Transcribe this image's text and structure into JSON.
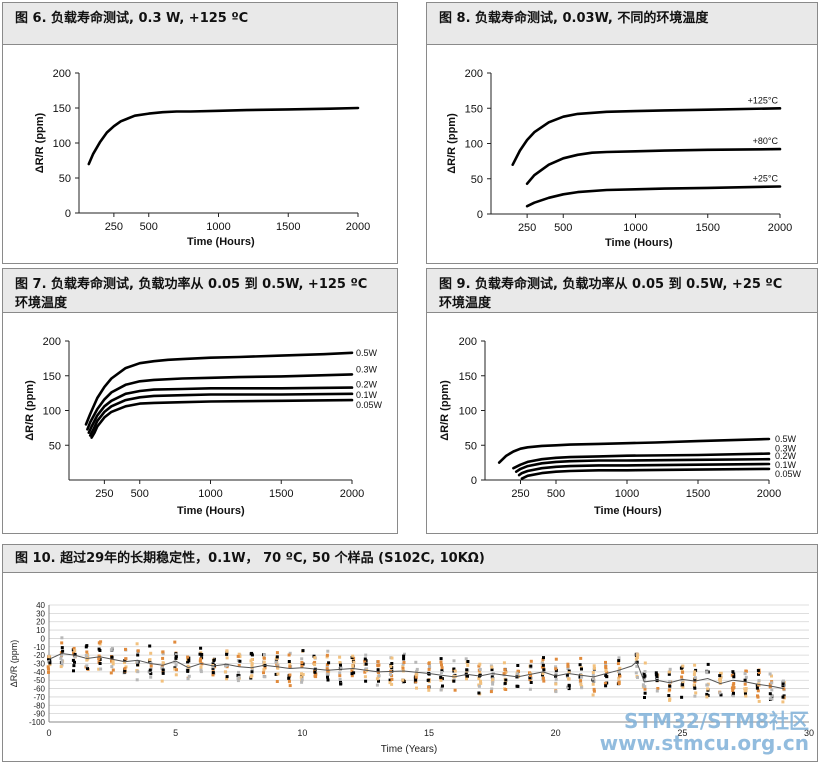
{
  "watermark": {
    "line1": "STM32/STM8社区",
    "line2": "www.stmcu.org.cn"
  },
  "chart_data": [
    {
      "id": "fig6",
      "type": "line",
      "title": "图 6. 负载寿命测试, 0.3 W, +125 ºC",
      "xlabel": "Time (Hours)",
      "ylabel": "ΔR/R (ppm)",
      "xlim": [
        0,
        2000
      ],
      "ylim": [
        0,
        200
      ],
      "xticks": [
        250,
        500,
        1000,
        1500,
        2000
      ],
      "yticks": [
        0,
        50,
        100,
        150,
        200
      ],
      "series": [
        {
          "name": "",
          "x": [
            70,
            100,
            150,
            200,
            250,
            300,
            400,
            500,
            600,
            700,
            800,
            1000,
            1200,
            1500,
            1800,
            2000
          ],
          "y": [
            70,
            84,
            101,
            115,
            124,
            131,
            139,
            142,
            144,
            145,
            145,
            146,
            147,
            148,
            149,
            150
          ]
        }
      ]
    },
    {
      "id": "fig8",
      "type": "line",
      "title": "图 8. 负载寿命测试, 0.03W, 不同的环境温度",
      "xlabel": "Time (Hours)",
      "ylabel": "ΔR/R (ppm)",
      "xlim": [
        0,
        2000
      ],
      "ylim": [
        0,
        200
      ],
      "xticks": [
        250,
        500,
        1000,
        1500,
        2000
      ],
      "yticks": [
        0,
        50,
        100,
        150,
        200
      ],
      "series": [
        {
          "name": "+125°C",
          "x": [
            150,
            200,
            250,
            300,
            400,
            500,
            600,
            800,
            1000,
            1200,
            1500,
            2000
          ],
          "y": [
            70,
            90,
            105,
            116,
            130,
            138,
            142,
            145,
            146,
            147,
            148,
            150
          ]
        },
        {
          "name": "+80°C",
          "x": [
            250,
            300,
            400,
            500,
            600,
            700,
            800,
            1000,
            1200,
            1500,
            2000
          ],
          "y": [
            43,
            55,
            70,
            79,
            84,
            87,
            88,
            89,
            90,
            91,
            92
          ]
        },
        {
          "name": "+25°C",
          "x": [
            250,
            300,
            400,
            500,
            600,
            800,
            1000,
            1200,
            1500,
            2000
          ],
          "y": [
            11,
            16,
            23,
            28,
            31,
            34,
            35,
            36,
            37,
            39
          ]
        }
      ]
    },
    {
      "id": "fig7",
      "type": "line",
      "title": "图 7. 负载寿命测试, 负载功率从 0.05 到 0.5W, +125 ºC 环境温度",
      "xlabel": "Time (Hours)",
      "ylabel": "ΔR/R (ppm)",
      "xlim": [
        0,
        2000
      ],
      "ylim": [
        0,
        200
      ],
      "xticks": [
        250,
        500,
        1000,
        1500,
        2000
      ],
      "yticks": [
        50,
        100,
        150,
        200
      ],
      "series": [
        {
          "name": "0.5W",
          "x": [
            120,
            150,
            200,
            250,
            300,
            400,
            500,
            600,
            700,
            800,
            1000,
            1200,
            1500,
            1800,
            2000
          ],
          "y": [
            80,
            95,
            118,
            134,
            146,
            161,
            168,
            171,
            173,
            174,
            176,
            177,
            179,
            181,
            183
          ]
        },
        {
          "name": "0.3W",
          "x": [
            130,
            150,
            200,
            250,
            300,
            400,
            500,
            600,
            800,
            1000,
            1200,
            1500,
            2000
          ],
          "y": [
            73,
            83,
            102,
            116,
            126,
            137,
            142,
            144,
            146,
            147,
            148,
            149,
            152
          ]
        },
        {
          "name": "0.2W",
          "x": [
            140,
            160,
            200,
            250,
            300,
            400,
            500,
            600,
            800,
            1000,
            1500,
            2000
          ],
          "y": [
            68,
            77,
            93,
            106,
            114,
            124,
            128,
            130,
            131,
            132,
            132,
            133
          ]
        },
        {
          "name": "0.1W",
          "x": [
            150,
            170,
            200,
            250,
            300,
            400,
            500,
            600,
            800,
            1000,
            1500,
            2000
          ],
          "y": [
            64,
            72,
            85,
            98,
            106,
            115,
            119,
            121,
            122,
            123,
            123,
            124
          ]
        },
        {
          "name": "0.05W",
          "x": [
            160,
            180,
            200,
            250,
            300,
            400,
            500,
            600,
            800,
            1000,
            1500,
            2000
          ],
          "y": [
            61,
            68,
            77,
            90,
            98,
            106,
            110,
            111,
            112,
            113,
            114,
            115
          ]
        }
      ]
    },
    {
      "id": "fig9",
      "type": "line",
      "title": "图 9. 负载寿命测试, 负载功率从 0.05 到 0.5W, +25 ºC 环境温度",
      "xlabel": "Time (Hours)",
      "ylabel": "ΔR/R (ppm)",
      "xlim": [
        0,
        2000
      ],
      "ylim": [
        0,
        200
      ],
      "xticks": [
        250,
        500,
        1000,
        1500,
        2000
      ],
      "yticks": [
        0,
        50,
        100,
        150,
        200
      ],
      "series": [
        {
          "name": "0.5W",
          "x": [
            100,
            150,
            200,
            250,
            300,
            400,
            500,
            600,
            800,
            1000,
            1200,
            1500,
            2000
          ],
          "y": [
            25,
            35,
            41,
            45,
            47,
            49,
            50,
            51,
            52,
            53,
            54,
            56,
            59
          ]
        },
        {
          "name": "0.3W",
          "x": [
            200,
            250,
            300,
            400,
            500,
            600,
            800,
            1000,
            1500,
            2000
          ],
          "y": [
            17,
            22,
            26,
            30,
            32,
            33,
            34,
            35,
            36,
            38
          ]
        },
        {
          "name": "0.2W",
          "x": [
            220,
            250,
            300,
            400,
            500,
            600,
            800,
            1000,
            1500,
            2000
          ],
          "y": [
            12,
            16,
            20,
            24,
            26,
            27,
            28,
            28,
            29,
            30
          ]
        },
        {
          "name": "0.1W",
          "x": [
            240,
            260,
            300,
            400,
            500,
            600,
            800,
            1000,
            1500,
            2000
          ],
          "y": [
            7,
            10,
            13,
            17,
            19,
            20,
            21,
            21,
            22,
            23
          ]
        },
        {
          "name": "0.05W",
          "x": [
            260,
            280,
            300,
            400,
            500,
            600,
            800,
            1000,
            1500,
            2000
          ],
          "y": [
            2,
            4,
            6,
            10,
            12,
            13,
            14,
            14,
            15,
            16
          ]
        }
      ]
    },
    {
      "id": "fig10",
      "type": "scatter",
      "title": "图 10. 超过29年的长期稳定性，0.1W，  70 ºC, 50 个样品 (S102C, 10KΩ)",
      "xlabel": "Time (Years)",
      "ylabel": "ΔR/R (ppm)",
      "xlim": [
        0,
        30
      ],
      "ylim": [
        -100,
        40
      ],
      "xticks": [
        0,
        5,
        10,
        15,
        20,
        25,
        30
      ],
      "yticks": [
        -100,
        -90,
        -80,
        -70,
        -60,
        -50,
        -40,
        -30,
        -20,
        -10,
        0,
        10,
        20,
        30,
        40
      ],
      "grid": true,
      "colors": [
        "#000000",
        "#e08a3c",
        "#b8b8b8",
        "#f2c17e"
      ],
      "mean_line": {
        "x": [
          0,
          0.5,
          1,
          1.5,
          2,
          2.5,
          3,
          3.5,
          4,
          4.5,
          5,
          5.5,
          6,
          6.5,
          7,
          7.5,
          8,
          8.5,
          9,
          9.5,
          10,
          11,
          12,
          13,
          14,
          15,
          15.5,
          16,
          16.5,
          17,
          17.5,
          18,
          18.5,
          19,
          19.5,
          20,
          20.5,
          21,
          21.5,
          22,
          22.5,
          23,
          23.2,
          23.5,
          24,
          24.5,
          25,
          25.5,
          26,
          26.5,
          27,
          27.5,
          28,
          28.5,
          29
        ],
        "y": [
          -25,
          -18,
          -20,
          -24,
          -22,
          -25,
          -28,
          -26,
          -30,
          -32,
          -27,
          -35,
          -30,
          -33,
          -31,
          -34,
          -35,
          -32,
          -34,
          -36,
          -35,
          -38,
          -36,
          -40,
          -39,
          -42,
          -44,
          -46,
          -43,
          -45,
          -42,
          -44,
          -46,
          -43,
          -40,
          -45,
          -42,
          -44,
          -46,
          -42,
          -38,
          -33,
          -28,
          -52,
          -50,
          -53,
          -49,
          -51,
          -48,
          -54,
          -50,
          -52,
          -55,
          -57,
          -60
        ]
      },
      "sample_times": [
        0,
        0.5,
        1,
        1.5,
        2,
        2.5,
        3,
        3.5,
        4,
        4.5,
        5,
        5.5,
        6,
        6.5,
        7,
        7.5,
        8,
        8.5,
        9,
        9.5,
        10,
        10.5,
        11,
        11.5,
        12,
        12.5,
        13,
        13.5,
        14,
        14.5,
        15,
        15.5,
        16,
        16.5,
        17,
        17.5,
        18,
        18.5,
        19,
        19.5,
        20,
        20.5,
        21,
        21.5,
        22,
        22.5,
        23.2,
        23.5,
        24,
        24.5,
        25,
        25.5,
        26,
        26.5,
        27,
        27.5,
        28,
        28.5,
        29
      ],
      "spread": 30,
      "samples_per_time": 14
    }
  ]
}
